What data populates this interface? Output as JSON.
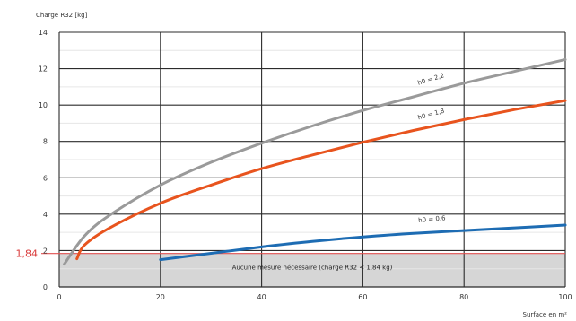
{
  "chart_data": {
    "type": "line",
    "ylabel": "Charge R32 [kg]",
    "xlabel": "Surface en m²",
    "xlim": [
      0,
      100
    ],
    "ylim": [
      0,
      14
    ],
    "x_ticks": [
      0,
      20,
      40,
      60,
      80,
      100
    ],
    "y_ticks": [
      0,
      2,
      4,
      6,
      8,
      10,
      12,
      14
    ],
    "grid": true,
    "threshold": {
      "value": 1.84,
      "label": "1,84",
      "zone_text": "Aucune mesure nécessaire (charge R32 < 1,84 kg)"
    },
    "series": [
      {
        "name": "h0 = 2,2",
        "color": "#9a9a9a",
        "x": [
          1,
          5,
          10,
          20,
          30,
          40,
          50,
          60,
          70,
          80,
          90,
          100
        ],
        "y": [
          1.25,
          2.8,
          3.95,
          5.6,
          6.85,
          7.9,
          8.85,
          9.7,
          10.45,
          11.2,
          11.85,
          12.5
        ]
      },
      {
        "name": "h0 = 1,8",
        "color": "#e8541e",
        "x": [
          3.5,
          5,
          10,
          20,
          30,
          40,
          50,
          60,
          70,
          80,
          90,
          100
        ],
        "y": [
          1.55,
          2.3,
          3.25,
          4.6,
          5.6,
          6.5,
          7.25,
          7.95,
          8.6,
          9.2,
          9.75,
          10.25
        ]
      },
      {
        "name": "h0 = 0,6",
        "color": "#1d6cb3",
        "x": [
          20,
          30,
          40,
          50,
          60,
          70,
          80,
          90,
          100
        ],
        "y": [
          1.5,
          1.85,
          2.2,
          2.5,
          2.75,
          2.95,
          3.1,
          3.25,
          3.4
        ]
      }
    ],
    "curve_labels": [
      {
        "series": 0,
        "x": 71,
        "y": 11.1,
        "angle": -17
      },
      {
        "series": 1,
        "x": 71,
        "y": 9.2,
        "angle": -15
      },
      {
        "series": 2,
        "x": 71,
        "y": 3.55,
        "angle": -5
      }
    ],
    "colors": {
      "threshold_line": "#e05050",
      "threshold_text": "#d93a3a",
      "zone_fill": "#d6d6d6",
      "grid_major": "#2b2b2b",
      "grid_minor": "#e6e6e6"
    }
  }
}
